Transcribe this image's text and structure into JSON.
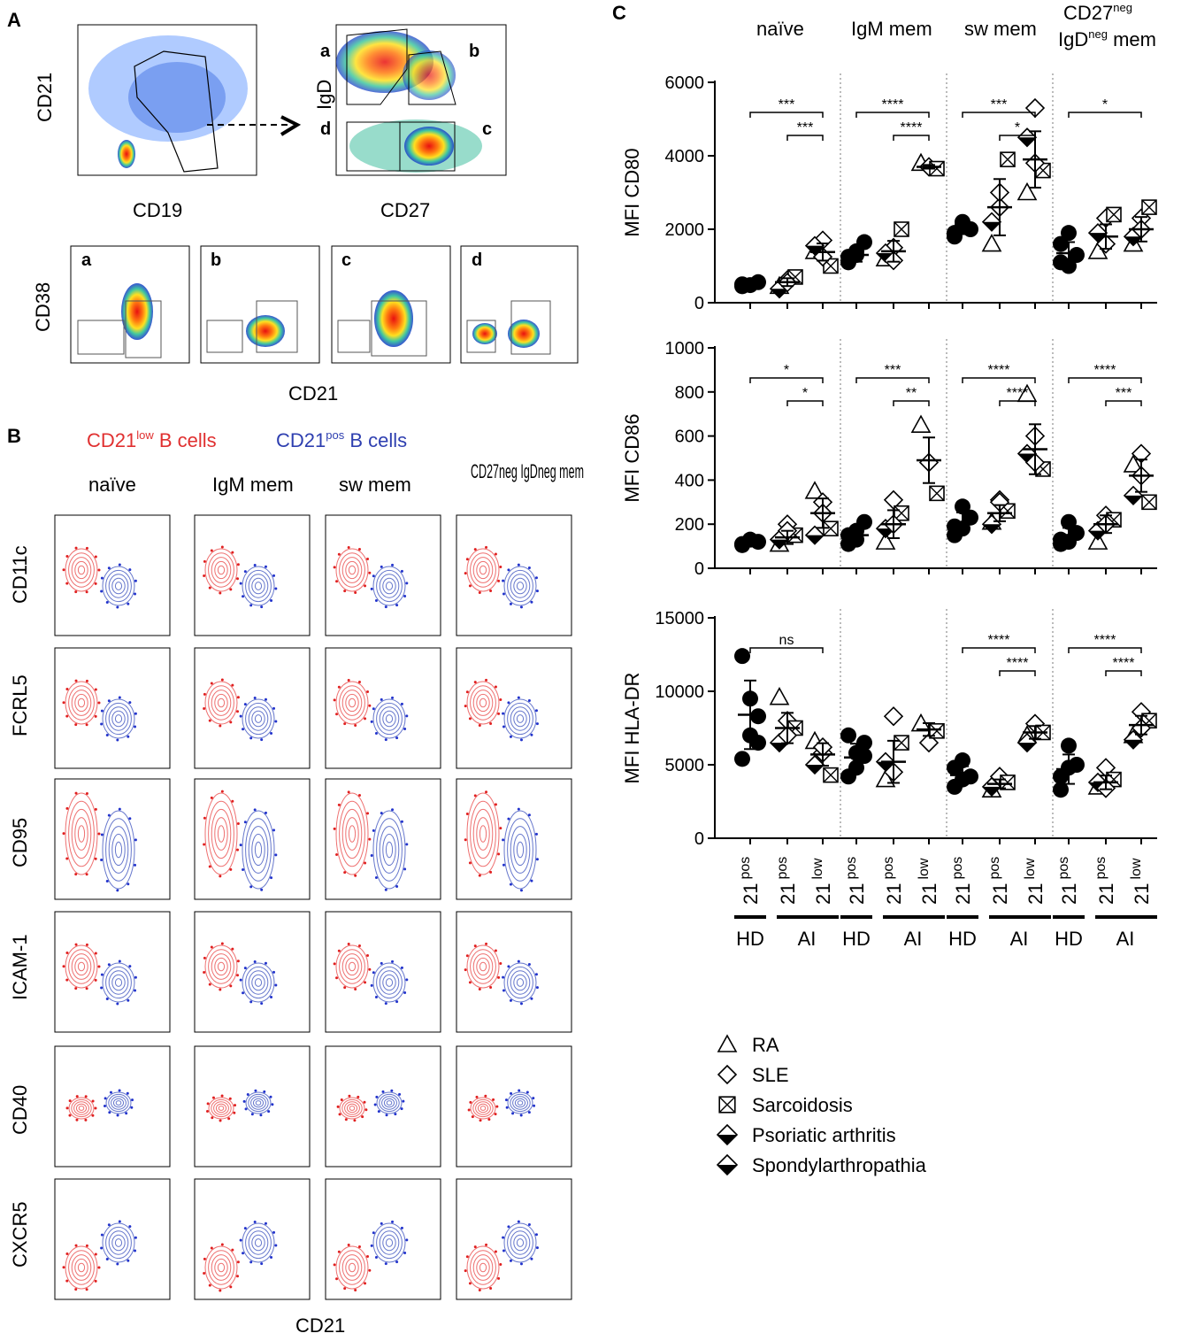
{
  "panel_letters": {
    "a": "A",
    "b": "B",
    "c": "C"
  },
  "panel_a": {
    "top_plots": [
      {
        "ylabel": "CD21",
        "xlabel": "CD19"
      },
      {
        "ylabel": "IgD",
        "xlabel": "CD27",
        "gates": [
          "a",
          "b",
          "c",
          "d"
        ]
      }
    ],
    "sub_plots": [
      "a",
      "b",
      "c",
      "d"
    ],
    "sub_ylabel": "CD38",
    "sub_xlabel": "CD21"
  },
  "panel_b": {
    "legend_low": {
      "main": "CD21",
      "sup": "low",
      "rest": " B cells"
    },
    "legend_pos": {
      "main": "CD21",
      "sup": "pos",
      "rest": " B cells"
    },
    "columns": [
      "naïve",
      "IgM mem",
      "sw mem",
      "CD27neg IgDneg mem"
    ],
    "rows": [
      "CD11c",
      "FCRL5",
      "CD95",
      "ICAM-1",
      "CD40",
      "CXCR5"
    ],
    "xlabel": "CD21"
  },
  "chart_data": [
    {
      "type": "scatter",
      "ylabel": "MFI CD80",
      "ylim": [
        0,
        6000
      ],
      "yticks": [
        "0",
        "2000",
        "4000",
        "6000"
      ],
      "groups": [
        "naïve",
        "IgM mem",
        "sw mem",
        "CD27neg IgDneg mem"
      ],
      "conditions": [
        "HD 21pos",
        "AI 21pos",
        "AI 21low"
      ],
      "series": [
        {
          "group": "naïve",
          "hd_pos": [
            500,
            480,
            560,
            450
          ],
          "ai_pos": [
            450,
            620,
            700,
            380,
            550
          ],
          "ai_low": [
            1400,
            1700,
            1000,
            1550,
            1250
          ],
          "means": [
            520,
            560,
            1380
          ]
        },
        {
          "group": "IgM mem",
          "hd_pos": [
            1100,
            1300,
            1650,
            1250,
            1400
          ],
          "ai_pos": [
            1200,
            1500,
            2000,
            1350,
            1150
          ],
          "ai_low": [
            3800,
            3700,
            3650
          ],
          "means": [
            1300,
            1400,
            3700
          ]
        },
        {
          "group": "sw mem",
          "hd_pos": [
            1900,
            2100,
            2000,
            1800,
            2200
          ],
          "ai_pos": [
            1600,
            2600,
            3900,
            2200,
            3000
          ],
          "ai_low": [
            3000,
            5300,
            3600,
            4500,
            3800
          ],
          "means": [
            2000,
            2600,
            3900
          ]
        },
        {
          "group": "CD27neg IgDneg mem",
          "hd_pos": [
            1100,
            1900,
            1300,
            1600,
            1000
          ],
          "ai_pos": [
            1400,
            2300,
            2400,
            1900,
            1600
          ],
          "ai_low": [
            1600,
            2300,
            2600,
            1800,
            2000
          ],
          "means": [
            1350,
            1800,
            2000
          ]
        }
      ],
      "significance": [
        {
          "group": 0,
          "label": "***",
          "from": "HD 21pos",
          "to": "AI 21low"
        },
        {
          "group": 0,
          "label": "***",
          "from": "AI 21pos",
          "to": "AI 21low"
        },
        {
          "group": 1,
          "label": "****",
          "from": "HD 21pos",
          "to": "AI 21low"
        },
        {
          "group": 1,
          "label": "****",
          "from": "AI 21pos",
          "to": "AI 21low"
        },
        {
          "group": 2,
          "label": "***",
          "from": "HD 21pos",
          "to": "AI 21low"
        },
        {
          "group": 2,
          "label": "*",
          "from": "AI 21pos",
          "to": "AI 21low"
        },
        {
          "group": 3,
          "label": "*",
          "from": "HD 21pos",
          "to": "AI 21low"
        }
      ]
    },
    {
      "type": "scatter",
      "ylabel": "MFI CD86",
      "ylim": [
        0,
        1000
      ],
      "yticks": [
        "0",
        "200",
        "400",
        "600",
        "800",
        "1000"
      ],
      "groups": [
        "naïve",
        "IgM mem",
        "sw mem",
        "CD27neg IgDneg mem"
      ],
      "conditions": [
        "HD 21pos",
        "AI 21pos",
        "AI 21low"
      ],
      "series": [
        {
          "group": "naïve",
          "hd_pos": [
            110,
            130,
            120,
            105
          ],
          "ai_pos": [
            110,
            200,
            150,
            130,
            170
          ],
          "ai_low": [
            350,
            300,
            180,
            150,
            250
          ],
          "means": [
            120,
            140,
            250
          ]
        },
        {
          "group": "IgM mem",
          "hd_pos": [
            110,
            170,
            210,
            150,
            130
          ],
          "ai_pos": [
            120,
            310,
            250,
            180,
            200
          ],
          "ai_low": [
            650,
            480,
            340
          ],
          "means": [
            150,
            200,
            490
          ]
        },
        {
          "group": "sw mem",
          "hd_pos": [
            150,
            280,
            230,
            190,
            180
          ],
          "ai_pos": [
            210,
            310,
            260,
            200,
            300
          ],
          "ai_low": [
            790,
            600,
            450,
            520,
            480
          ],
          "means": [
            210,
            250,
            540
          ]
        },
        {
          "group": "CD27neg IgDneg mem",
          "hd_pos": [
            110,
            210,
            160,
            130,
            120
          ],
          "ai_pos": [
            120,
            240,
            220,
            170,
            200
          ],
          "ai_low": [
            470,
            520,
            300,
            330,
            420
          ],
          "means": [
            150,
            200,
            420
          ]
        }
      ],
      "significance": [
        {
          "group": 0,
          "label": "*",
          "from": "HD 21pos",
          "to": "AI 21low"
        },
        {
          "group": 0,
          "label": "*",
          "from": "AI 21pos",
          "to": "AI 21low"
        },
        {
          "group": 1,
          "label": "***",
          "from": "HD 21pos",
          "to": "AI 21low"
        },
        {
          "group": 1,
          "label": "**",
          "from": "AI 21pos",
          "to": "AI 21low"
        },
        {
          "group": 2,
          "label": "****",
          "from": "HD 21pos",
          "to": "AI 21low"
        },
        {
          "group": 2,
          "label": "****",
          "from": "AI 21pos",
          "to": "AI 21low"
        },
        {
          "group": 3,
          "label": "****",
          "from": "HD 21pos",
          "to": "AI 21low"
        },
        {
          "group": 3,
          "label": "***",
          "from": "AI 21pos",
          "to": "AI 21low"
        }
      ]
    },
    {
      "type": "scatter",
      "ylabel": "MFI HLA-DR",
      "ylim": [
        0,
        15000
      ],
      "yticks": [
        "0",
        "5000",
        "10000",
        "15000"
      ],
      "groups": [
        "naïve",
        "IgM mem",
        "sw mem",
        "CD27neg IgDneg mem"
      ],
      "conditions": [
        "HD 21pos",
        "AI 21pos",
        "AI 21low"
      ],
      "series": [
        {
          "group": "naïve",
          "hd_pos": [
            12400,
            9500,
            8300,
            5400,
            7000,
            6500
          ],
          "ai_pos": [
            9600,
            8000,
            7500,
            6500,
            7000
          ],
          "ai_low": [
            6600,
            5800,
            4300,
            5000,
            6200
          ],
          "means": [
            8400,
            7500,
            5700
          ]
        },
        {
          "group": "IgM mem",
          "hd_pos": [
            4200,
            5800,
            6500,
            7000,
            4800,
            5600
          ],
          "ai_pos": [
            4000,
            8300,
            6500,
            5200,
            4500
          ],
          "ai_low": [
            7800,
            6500,
            7300
          ],
          "means": [
            5500,
            5200,
            7400
          ]
        },
        {
          "group": "sw mem",
          "hd_pos": [
            3500,
            5300,
            4200,
            4800,
            4000
          ],
          "ai_pos": [
            3300,
            4200,
            3800,
            3500
          ],
          "ai_low": [
            7000,
            7800,
            7200,
            6500
          ],
          "means": [
            4300,
            3700,
            7200
          ]
        },
        {
          "group": "CD27neg IgDneg mem",
          "hd_pos": [
            3300,
            6300,
            5000,
            4200,
            4800
          ],
          "ai_pos": [
            3500,
            4800,
            4000,
            3800,
            3400
          ],
          "ai_low": [
            7000,
            8600,
            8000,
            6700,
            7500
          ],
          "means": [
            4700,
            3800,
            7700
          ]
        }
      ],
      "significance": [
        {
          "group": 0,
          "label": "ns",
          "from": "HD 21pos",
          "to": "AI 21low"
        },
        {
          "group": 2,
          "label": "****",
          "from": "HD 21pos",
          "to": "AI 21low"
        },
        {
          "group": 2,
          "label": "****",
          "from": "AI 21pos",
          "to": "AI 21low"
        },
        {
          "group": 3,
          "label": "****",
          "from": "HD 21pos",
          "to": "AI 21low"
        },
        {
          "group": 3,
          "label": "****",
          "from": "AI 21pos",
          "to": "AI 21low"
        }
      ]
    }
  ],
  "panel_c": {
    "column_headers": [
      "naïve",
      "IgM mem",
      "sw mem"
    ],
    "last_header": {
      "line1_main": "CD27",
      "line1_sup": "neg",
      "line2_main": "IgD",
      "line2_sup": "neg",
      "line2_rest": " mem"
    },
    "tick_labels": [
      {
        "main": "21",
        "sup": "pos"
      },
      {
        "main": "21",
        "sup": "pos"
      },
      {
        "main": "21",
        "sup": "low"
      }
    ],
    "group_labels": [
      "HD",
      "AI"
    ],
    "legend": [
      {
        "label": "RA",
        "shape": "triangle"
      },
      {
        "label": "SLE",
        "shape": "diamond"
      },
      {
        "label": "Sarcoidosis",
        "shape": "crossed-square"
      },
      {
        "label": "Psoriatic arthritis",
        "shape": "half-diamond"
      },
      {
        "label": "Spondylarthropathia",
        "shape": "half-diamond-alt"
      }
    ]
  },
  "colors": {
    "red": "#e02020",
    "blue": "#2233cc",
    "contour_red": "#ee7070",
    "contour_blue": "#6677cc",
    "legend_low": "#e03030",
    "legend_pos": "#2e3fb0"
  }
}
